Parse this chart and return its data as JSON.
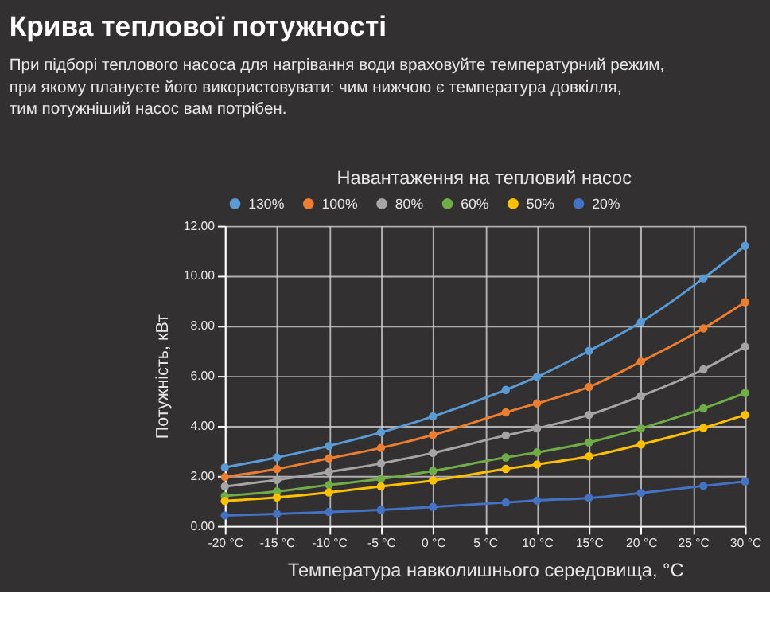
{
  "chart_data": {
    "type": "line",
    "title": "Крива теплової потужності",
    "subtitle": "При підборі теплового насоса для нагрівання води враховуйте температурний режим,\nпри якому плануєте його використовувати: чим нижчою є температура довкілля,\nтим потужніший насос вам потрібен.",
    "annotations": [
      "Навантаження на тепловий насос"
    ],
    "xlabel": "Температура навколишнього середовища, °C",
    "ylabel": "Потужність, кВт",
    "x": [
      -20,
      -15,
      -10,
      -5,
      0,
      7,
      10,
      15,
      20,
      26,
      30
    ],
    "series": [
      {
        "name": "130%",
        "color": "#5b9bd5",
        "values": [
          2.34,
          2.74,
          3.2,
          3.74,
          4.38,
          5.44,
          5.96,
          7.0,
          8.15,
          9.9,
          11.2
        ]
      },
      {
        "name": "100%",
        "color": "#ed7d31",
        "values": [
          1.96,
          2.28,
          2.7,
          3.12,
          3.64,
          4.54,
          4.9,
          5.56,
          6.57,
          7.9,
          8.95
        ]
      },
      {
        "name": "80%",
        "color": "#a5a5a5",
        "values": [
          1.58,
          1.84,
          2.16,
          2.5,
          2.92,
          3.62,
          3.9,
          4.44,
          5.2,
          6.26,
          7.17
        ]
      },
      {
        "name": "60%",
        "color": "#70ad47",
        "values": [
          1.2,
          1.38,
          1.64,
          1.88,
          2.2,
          2.74,
          2.94,
          3.34,
          3.9,
          4.7,
          5.32
        ]
      },
      {
        "name": "50%",
        "color": "#ffc000",
        "values": [
          1.0,
          1.14,
          1.34,
          1.58,
          1.82,
          2.28,
          2.46,
          2.78,
          3.26,
          3.92,
          4.44
        ]
      },
      {
        "name": "20%",
        "color": "#4472c4",
        "values": [
          0.42,
          0.48,
          0.56,
          0.64,
          0.76,
          0.94,
          1.02,
          1.12,
          1.32,
          1.6,
          1.78
        ]
      }
    ],
    "xlim": [
      -20,
      30
    ],
    "xticks": [
      {
        "value": -20,
        "label": "-20 °C"
      },
      {
        "value": -15,
        "label": "-15 °C"
      },
      {
        "value": -10,
        "label": "-10 °C"
      },
      {
        "value": -5,
        "label": "-5 °C"
      },
      {
        "value": 0,
        "label": "0 °C"
      },
      {
        "value": 5,
        "label": "5 °C"
      },
      {
        "value": 10,
        "label": "10 °C"
      },
      {
        "value": 15,
        "label": "15°C"
      },
      {
        "value": 20,
        "label": "20 °C"
      },
      {
        "value": 25,
        "label": "25 °C"
      },
      {
        "value": 30,
        "label": "30 °C"
      }
    ],
    "ylim": [
      0,
      12
    ],
    "yticks": [
      {
        "value": 0,
        "label": "0.00"
      },
      {
        "value": 2,
        "label": "2.00"
      },
      {
        "value": 4,
        "label": "4.00"
      },
      {
        "value": 6,
        "label": "6.00"
      },
      {
        "value": 8,
        "label": "8.00"
      },
      {
        "value": 10,
        "label": "10.00"
      },
      {
        "value": 12,
        "label": "12.00"
      }
    ],
    "grid": true,
    "legend": "top",
    "marker": "circle",
    "line_style": "solid"
  }
}
